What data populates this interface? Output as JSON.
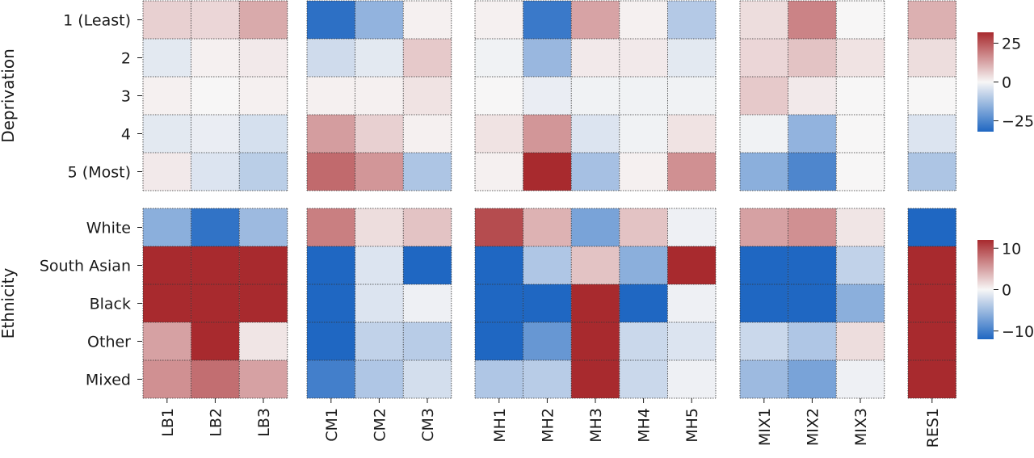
{
  "chart_data": {
    "type": "heatmap",
    "colormap": {
      "name": "diverging blue-white-red",
      "low_color": "#1f67c2",
      "mid_color": "#f7f6f6",
      "high_color": "#a82a2e"
    },
    "column_groups": [
      {
        "name": "LB",
        "columns": [
          "LB1",
          "LB2",
          "LB3"
        ]
      },
      {
        "name": "CM",
        "columns": [
          "CM1",
          "CM2",
          "CM3"
        ]
      },
      {
        "name": "MH",
        "columns": [
          "MH1",
          "MH2",
          "MH3",
          "MH4",
          "MH5"
        ]
      },
      {
        "name": "MIX",
        "columns": [
          "MIX1",
          "MIX2",
          "MIX3"
        ]
      },
      {
        "name": "RES",
        "columns": [
          "RES1"
        ]
      }
    ],
    "panels": [
      {
        "ylabel": "Deprivation",
        "rows": [
          "1 (Least)",
          "2",
          "3",
          "4",
          "5 (Most)"
        ],
        "vmin": -32,
        "vmax": 32,
        "colorbar_ticks": [
          25,
          0,
          -25
        ],
        "colorbar_tick_labels": [
          "25",
          "0",
          "−25"
        ],
        "values": [
          [
            6,
            5,
            12,
            -30,
            -15,
            1,
            1,
            -28,
            13,
            1,
            -10,
            4,
            18,
            0,
            11
          ],
          [
            -3,
            1,
            2,
            -6,
            -3,
            7,
            -1,
            -14,
            2,
            2,
            -3,
            5,
            8,
            3,
            4
          ],
          [
            1,
            0,
            1,
            1,
            1,
            3,
            0,
            -2,
            -1,
            -1,
            -1,
            7,
            2,
            0,
            0
          ],
          [
            -3,
            -2,
            -5,
            14,
            6,
            1,
            3,
            15,
            -4,
            -1,
            3,
            -1,
            -15,
            0,
            -4
          ],
          [
            2,
            -4,
            -9,
            22,
            15,
            -11,
            1,
            32,
            -12,
            1,
            16,
            -16,
            -25,
            0,
            -11
          ]
        ]
      },
      {
        "ylabel": "Ethnicity",
        "rows": [
          "White",
          "South Asian",
          "Black",
          "Other",
          "Mixed"
        ],
        "vmin": -12,
        "vmax": 12,
        "colorbar_ticks": [
          10,
          0,
          -10
        ],
        "colorbar_tick_labels": [
          "10",
          "0",
          "−10"
        ],
        "values": [
          [
            -6,
            -11,
            -5,
            7,
            1.5,
            3,
            10,
            4,
            -7,
            3,
            -0.5,
            5,
            6,
            1,
            -12
          ],
          [
            12,
            12,
            12,
            -12,
            -1.5,
            -12,
            -12,
            -4,
            3,
            -6,
            12,
            -12,
            -12,
            -3,
            12
          ],
          [
            12,
            12,
            12,
            -12,
            -1.5,
            -0.5,
            -12,
            -12,
            12,
            -12,
            -0.5,
            -12,
            -12,
            -6,
            12
          ],
          [
            5,
            12,
            1,
            -12,
            -3,
            -3.5,
            -12,
            -8,
            12,
            -2.5,
            -1.5,
            -2.5,
            -4,
            1.5,
            12
          ],
          [
            6,
            8,
            5,
            -10,
            -4,
            -2,
            -4,
            -3.5,
            12,
            -2.5,
            -0.5,
            -5,
            -7,
            -0.5,
            12
          ]
        ]
      }
    ]
  }
}
